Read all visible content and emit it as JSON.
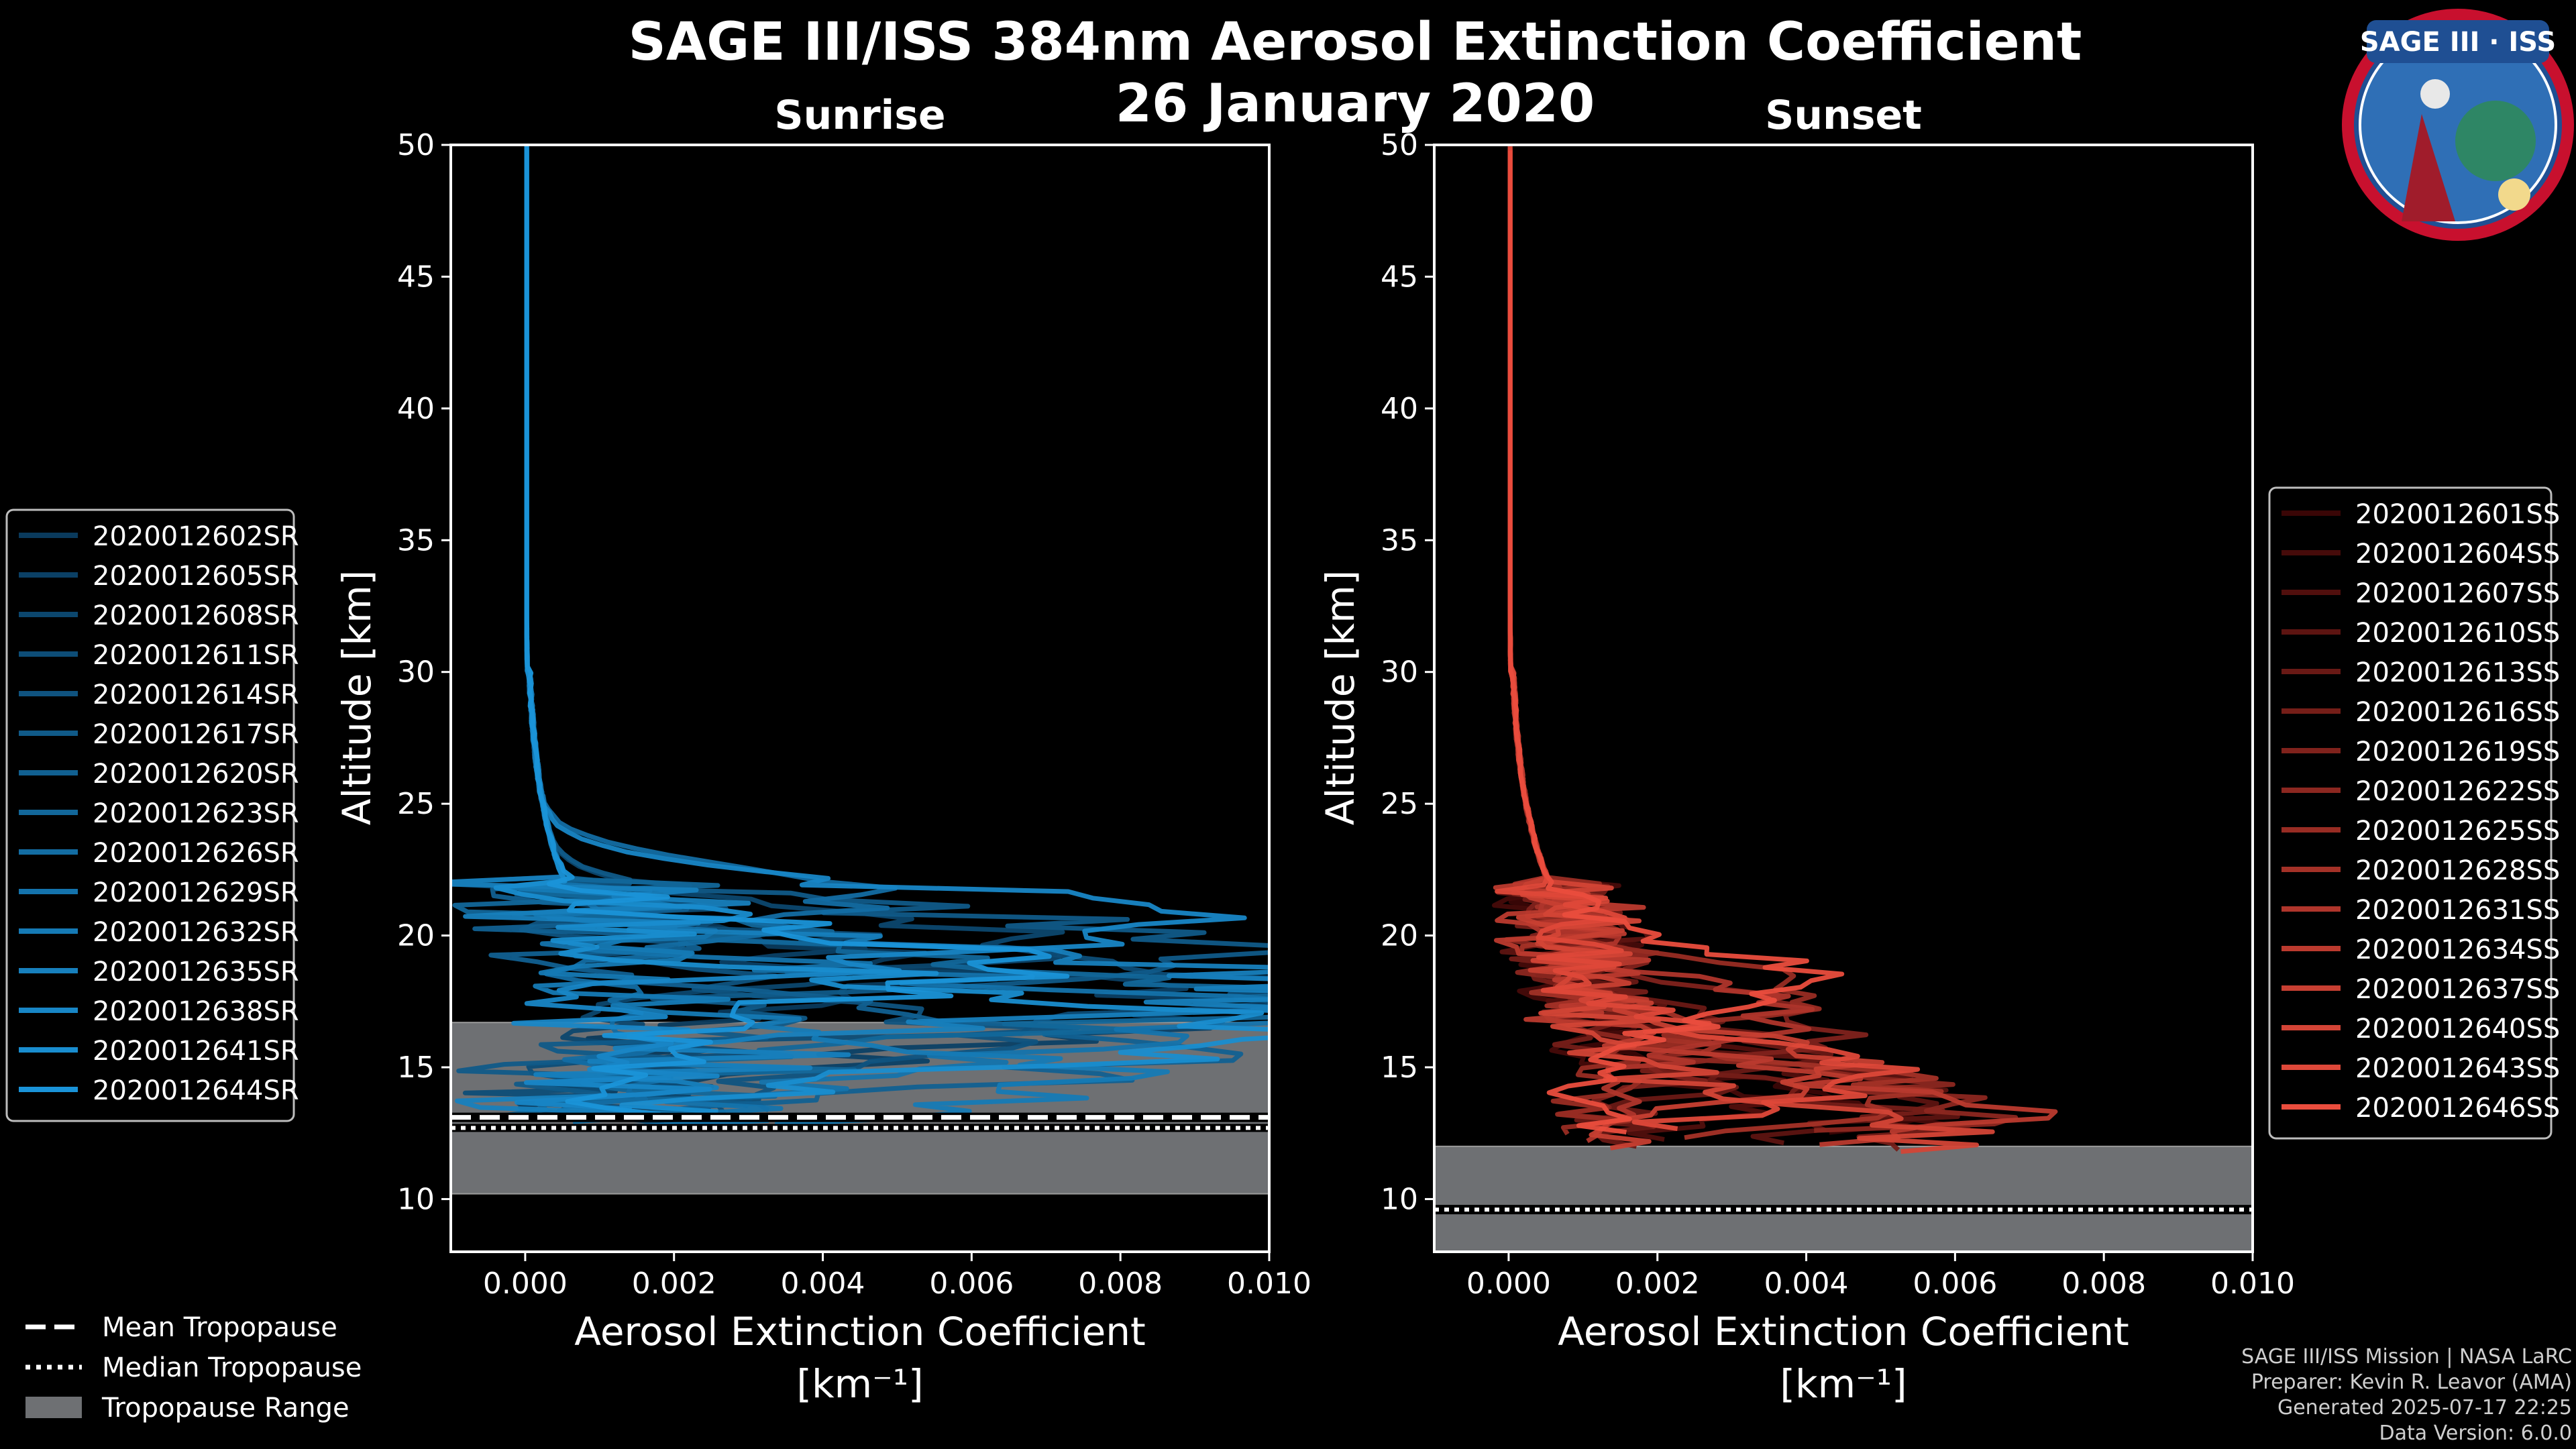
{
  "page": {
    "title": "SAGE III/ISS 384nm Aerosol Extinction Coefficient",
    "date": "26 January 2020",
    "logo_text": "SAGE III · ISS",
    "credits": [
      "SAGE III/ISS Mission | NASA LaRC",
      "Preparer: Kevin R. Leavor (AMA)",
      "Generated 2025-07-17 22:25",
      "Data Version: 6.0.0"
    ]
  },
  "shared_legend": {
    "items": [
      {
        "label": "Mean Tropopause",
        "style": "dashed"
      },
      {
        "label": "Median Tropopause",
        "style": "dotted"
      },
      {
        "label": "Tropopause Range",
        "style": "patch",
        "color": "#6e7073"
      }
    ]
  },
  "chart_data": [
    {
      "type": "line",
      "title": "Sunrise",
      "xlabel": "Aerosol Extinction Coefficient",
      "xunit": "[km⁻¹]",
      "ylabel": "Altitude [km]",
      "xlim": [
        -0.001,
        0.01
      ],
      "ylim": [
        8,
        50
      ],
      "xticks": [
        0.0,
        0.002,
        0.004,
        0.006,
        0.008,
        0.01
      ],
      "xtick_labels": [
        "0.000",
        "0.002",
        "0.004",
        "0.006",
        "0.008",
        "0.010"
      ],
      "yticks": [
        10,
        15,
        20,
        25,
        30,
        35,
        40,
        45,
        50
      ],
      "color_base": "#0a3a5c",
      "color_end": "#1a93d8",
      "tropopause": {
        "mean": 13.1,
        "median": 12.7,
        "range": [
          10.2,
          16.7
        ]
      },
      "series": [
        {
          "name": "2020012602SR",
          "peak_x": 0.0045,
          "peak_alt": 18.5,
          "spread": 0.4
        },
        {
          "name": "2020012605SR",
          "peak_x": 0.0082,
          "peak_alt": 17.2,
          "spread": 0.6
        },
        {
          "name": "2020012608SR",
          "peak_x": 0.006,
          "peak_alt": 19.8,
          "spread": 0.3
        },
        {
          "name": "2020012611SR",
          "peak_x": 0.01,
          "peak_alt": 18.0,
          "spread": 0.5
        },
        {
          "name": "2020012614SR",
          "peak_x": 0.0052,
          "peak_alt": 16.2,
          "spread": 0.7
        },
        {
          "name": "2020012617SR",
          "peak_x": 0.0095,
          "peak_alt": 19.5,
          "spread": 0.4
        },
        {
          "name": "2020012620SR",
          "peak_x": 0.0071,
          "peak_alt": 15.5,
          "spread": 0.6
        },
        {
          "name": "2020012623SR",
          "peak_x": 0.01,
          "peak_alt": 17.6,
          "spread": 0.5
        },
        {
          "name": "2020012626SR",
          "peak_x": 0.0039,
          "peak_alt": 21.5,
          "spread": 0.3
        },
        {
          "name": "2020012629SR",
          "peak_x": 0.0088,
          "peak_alt": 16.8,
          "spread": 0.6
        },
        {
          "name": "2020012632SR",
          "peak_x": 0.0063,
          "peak_alt": 14.6,
          "spread": 0.5
        },
        {
          "name": "2020012635SR",
          "peak_x": 0.01,
          "peak_alt": 17.9,
          "spread": 0.4
        },
        {
          "name": "2020012638SR",
          "peak_x": 0.0076,
          "peak_alt": 20.6,
          "spread": 0.5
        },
        {
          "name": "2020012641SR",
          "peak_x": 0.01,
          "peak_alt": 16.4,
          "spread": 0.6
        },
        {
          "name": "2020012644SR",
          "peak_x": 0.0057,
          "peak_alt": 18.8,
          "spread": 0.4
        }
      ]
    },
    {
      "type": "line",
      "title": "Sunset",
      "xlabel": "Aerosol Extinction Coefficient",
      "xunit": "[km⁻¹]",
      "ylabel": "Altitude [km]",
      "xlim": [
        -0.001,
        0.01
      ],
      "ylim": [
        8,
        50
      ],
      "xticks": [
        0.0,
        0.002,
        0.004,
        0.006,
        0.008,
        0.01
      ],
      "xtick_labels": [
        "0.000",
        "0.002",
        "0.004",
        "0.006",
        "0.008",
        "0.010"
      ],
      "yticks": [
        10,
        15,
        20,
        25,
        30,
        35,
        40,
        45,
        50
      ],
      "color_base": "#3a0606",
      "color_end": "#ea4d3d",
      "tropopause": {
        "mean": 9.6,
        "median": 9.6,
        "range": [
          8.0,
          12.0
        ]
      },
      "series": [
        {
          "name": "2020012601SS",
          "peak_x": 0.0036,
          "peak_alt": 13.2,
          "spread": 0.4
        },
        {
          "name": "2020012604SS",
          "peak_x": 0.0041,
          "peak_alt": 12.6,
          "spread": 0.5
        },
        {
          "name": "2020012607SS",
          "peak_x": 0.003,
          "peak_alt": 14.4,
          "spread": 0.4
        },
        {
          "name": "2020012610SS",
          "peak_x": 0.0046,
          "peak_alt": 13.8,
          "spread": 0.5
        },
        {
          "name": "2020012613SS",
          "peak_x": 0.0028,
          "peak_alt": 15.6,
          "spread": 0.4
        },
        {
          "name": "2020012616SS",
          "peak_x": 0.0044,
          "peak_alt": 12.9,
          "spread": 0.5
        },
        {
          "name": "2020012619SS",
          "peak_x": 0.0032,
          "peak_alt": 16.5,
          "spread": 0.4
        },
        {
          "name": "2020012622SS",
          "peak_x": 0.0049,
          "peak_alt": 13.5,
          "spread": 0.5
        },
        {
          "name": "2020012625SS",
          "peak_x": 0.003,
          "peak_alt": 17.8,
          "spread": 0.4
        },
        {
          "name": "2020012628SS",
          "peak_x": 0.0042,
          "peak_alt": 14.1,
          "spread": 0.5
        },
        {
          "name": "2020012631SS",
          "peak_x": 0.0027,
          "peak_alt": 16.9,
          "spread": 0.4
        },
        {
          "name": "2020012634SS",
          "peak_x": 0.005,
          "peak_alt": 13.3,
          "spread": 0.5
        },
        {
          "name": "2020012637SS",
          "peak_x": 0.0034,
          "peak_alt": 15.1,
          "spread": 0.4
        },
        {
          "name": "2020012640SS",
          "peak_x": 0.0043,
          "peak_alt": 12.4,
          "spread": 0.5
        },
        {
          "name": "2020012643SS",
          "peak_x": 0.0037,
          "peak_alt": 14.8,
          "spread": 0.4
        },
        {
          "name": "2020012646SS",
          "peak_x": 0.0031,
          "peak_alt": 18.2,
          "spread": 0.4
        }
      ]
    }
  ]
}
